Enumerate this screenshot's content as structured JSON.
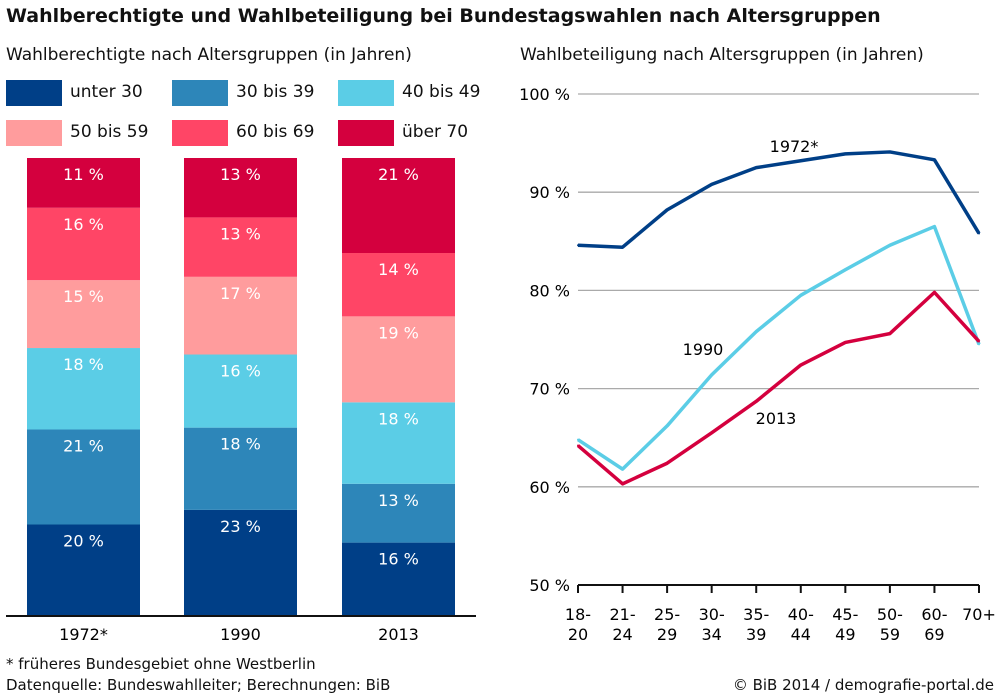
{
  "title": "Wahlberechtigte und Wahlbeteiligung bei Bundestagswahlen nach Altersgruppen",
  "footnote": "* früheres Bundesgebiet ohne Westberlin",
  "source": "Datenquelle: Bundeswahlleiter; Berechnungen: BiB",
  "credit": "© BiB 2014 / demografie-portal.de",
  "chart_data": [
    {
      "type": "bar",
      "stacked": true,
      "title": "Wahlberechtigte nach Altersgruppen (in Jahren)",
      "categories": [
        "1972*",
        "1990",
        "2013"
      ],
      "series": [
        {
          "name": "unter 30",
          "color": "#003f87",
          "values": [
            20,
            23,
            16
          ]
        },
        {
          "name": "30 bis 39",
          "color": "#2d86b9",
          "values": [
            21,
            18,
            13
          ]
        },
        {
          "name": "40 bis 49",
          "color": "#5bcde6",
          "values": [
            18,
            16,
            18
          ]
        },
        {
          "name": "50 bis 59",
          "color": "#ff9c9d",
          "values": [
            15,
            17,
            19
          ]
        },
        {
          "name": "60 bis 69",
          "color": "#ff4566",
          "values": [
            16,
            13,
            14
          ]
        },
        {
          "name": "über 70",
          "color": "#d4003e",
          "values": [
            11,
            13,
            21
          ]
        }
      ],
      "value_suffix": " %",
      "legend": "top"
    },
    {
      "type": "line",
      "title": "Wahlbeteiligung nach Altersgruppen (in Jahren)",
      "categories": [
        [
          "18-",
          "20"
        ],
        [
          "21-",
          "24"
        ],
        [
          "25-",
          "29"
        ],
        [
          "30-",
          "34"
        ],
        [
          "35-",
          "39"
        ],
        [
          "40-",
          "44"
        ],
        [
          "45-",
          "49"
        ],
        [
          "50-",
          "59"
        ],
        [
          "60-",
          "69"
        ],
        [
          "70+",
          ""
        ]
      ],
      "ylim": [
        50,
        100
      ],
      "yticks": [
        "50 %",
        "60 %",
        "70 %",
        "80 %",
        "90 %",
        "100 %"
      ],
      "grid": true,
      "series": [
        {
          "name": "1972*",
          "color": "#003f87",
          "values": [
            84.6,
            84.4,
            88.2,
            90.8,
            92.5,
            93.2,
            93.9,
            94.1,
            93.3,
            85.8
          ]
        },
        {
          "name": "1990",
          "color": "#5bcde6",
          "values": [
            64.8,
            61.8,
            66.2,
            71.4,
            75.8,
            79.5,
            82.1,
            84.6,
            86.5,
            74.5
          ]
        },
        {
          "name": "2013",
          "color": "#d4003e",
          "values": [
            64.2,
            60.3,
            62.4,
            65.5,
            68.7,
            72.4,
            74.7,
            75.6,
            79.8,
            74.8
          ]
        }
      ]
    }
  ]
}
